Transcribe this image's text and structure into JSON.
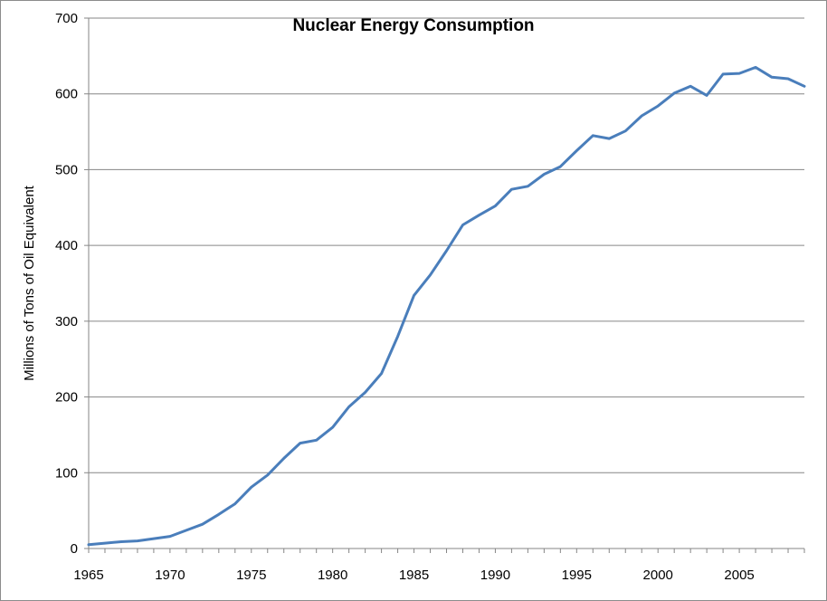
{
  "chart_data": {
    "type": "line",
    "title": "Nuclear Energy Consumption",
    "xlabel": "",
    "ylabel": "Millions of Tons of Oil Equivalent",
    "xlim": [
      1965,
      2009
    ],
    "ylim": [
      0,
      700
    ],
    "x_ticks": [
      "1965",
      "1970",
      "1975",
      "1980",
      "1985",
      "1990",
      "1995",
      "2000",
      "2005"
    ],
    "y_ticks": [
      "0",
      "100",
      "200",
      "300",
      "400",
      "500",
      "600",
      "700"
    ],
    "grid": "horizontal",
    "legend": "none",
    "line_color": "#4a7ebb",
    "series": [
      {
        "x": [
          1965,
          1966,
          1967,
          1968,
          1969,
          1970,
          1971,
          1972,
          1973,
          1974,
          1975,
          1976,
          1977,
          1978,
          1979,
          1980,
          1981,
          1982,
          1983,
          1984,
          1985,
          1986,
          1987,
          1988,
          1989,
          1990,
          1991,
          1992,
          1993,
          1994,
          1995,
          1996,
          1997,
          1998,
          1999,
          2000,
          2001,
          2002,
          2003,
          2004,
          2005,
          2006,
          2007,
          2008,
          2009
        ],
        "values": [
          5,
          7,
          9,
          10,
          13,
          16,
          24,
          32,
          45,
          59,
          81,
          97,
          119,
          139,
          143,
          160,
          187,
          206,
          231,
          280,
          334,
          361,
          393,
          427,
          440,
          452,
          474,
          478,
          494,
          504,
          525,
          545,
          541,
          551,
          571,
          584,
          601,
          610,
          598,
          626,
          627,
          635,
          622,
          620,
          610
        ]
      }
    ]
  }
}
